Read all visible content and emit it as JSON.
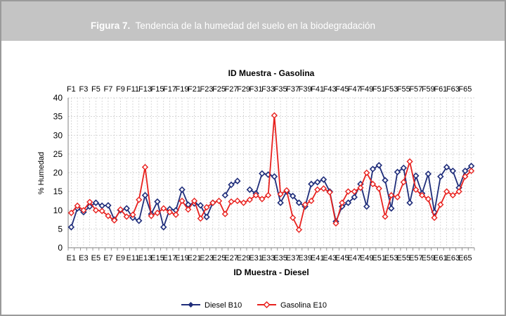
{
  "figure": {
    "label": "Figura 7.",
    "title": "Tendencia de la humedad del suelo en la biodegradación"
  },
  "chart_data": {
    "type": "line",
    "title_top": "ID Muestra - Gasolina",
    "xlabel": "ID Muestra - Diesel",
    "ylabel": "% Humedad",
    "ylim": [
      0,
      40
    ],
    "yticks": [
      0,
      5,
      10,
      15,
      20,
      25,
      30,
      35,
      40
    ],
    "grid": true,
    "legend_position": "bottom",
    "top_tick_labels": [
      "F1",
      "F3",
      "F5",
      "F7",
      "F9",
      "F11",
      "F13",
      "F15",
      "F17",
      "F19",
      "F21",
      "F23",
      "F25",
      "F27",
      "F29",
      "F31",
      "F33",
      "F35",
      "F37",
      "F39",
      "F41",
      "F43",
      "F45",
      "F47",
      "F49",
      "F51",
      "F53",
      "F55",
      "F57",
      "F59",
      "F61",
      "F63",
      "F65"
    ],
    "bottom_tick_labels": [
      "E1",
      "E3",
      "E5",
      "E7",
      "E9",
      "E11",
      "E13",
      "E15",
      "E17",
      "E19",
      "E21",
      "E23",
      "E25",
      "E27",
      "E29",
      "E31",
      "E33",
      "E35",
      "E37",
      "E39",
      "E41",
      "E43",
      "E45",
      "E47",
      "E49",
      "E51",
      "E53",
      "E55",
      "E57",
      "E59",
      "E61",
      "E63",
      "E65"
    ],
    "series": [
      {
        "name": "Diesel B10",
        "color": "#1f2d7a",
        "marker": "diamond",
        "values": [
          5.5,
          10.5,
          9.5,
          11,
          12,
          11.2,
          11.3,
          7.5,
          10,
          10.5,
          8,
          7.2,
          14,
          9,
          12.3,
          5.5,
          10.3,
          10,
          15.5,
          11.5,
          11.8,
          11.3,
          8.2,
          12,
          null,
          14,
          16.8,
          17.8,
          null,
          15.5,
          14.5,
          19.8,
          19.5,
          19,
          12,
          15,
          13.8,
          12,
          11,
          17,
          17.5,
          18.2,
          15,
          7,
          11,
          12,
          13.5,
          17,
          11,
          21,
          22,
          18,
          10.5,
          20.2,
          21.3,
          12,
          19.2,
          14.5,
          19.7,
          9.5,
          19,
          21.5,
          20.5,
          16,
          20.5,
          21.8
        ]
      },
      {
        "name": "Gasolina E10",
        "color": "#e8211e",
        "marker": "diamond-open",
        "values": [
          9.3,
          11.2,
          10,
          12.2,
          10,
          9.8,
          8.5,
          7.3,
          10.2,
          8.3,
          8.8,
          12.8,
          21.5,
          8.5,
          9.3,
          10.5,
          9.5,
          8.8,
          12.5,
          10.2,
          12.5,
          7.8,
          10.8,
          12,
          12.5,
          9,
          12.3,
          12.5,
          12,
          12.8,
          14,
          13,
          14,
          35.3,
          14.3,
          15.3,
          8,
          4.8,
          11.5,
          12.5,
          15.5,
          15.8,
          14.8,
          6.5,
          12,
          15,
          15,
          16,
          20,
          17,
          15.8,
          8.3,
          14,
          13.5,
          17.5,
          23,
          15.5,
          14,
          13,
          8,
          11.5,
          15,
          14,
          15,
          19,
          20.5
        ]
      }
    ]
  }
}
